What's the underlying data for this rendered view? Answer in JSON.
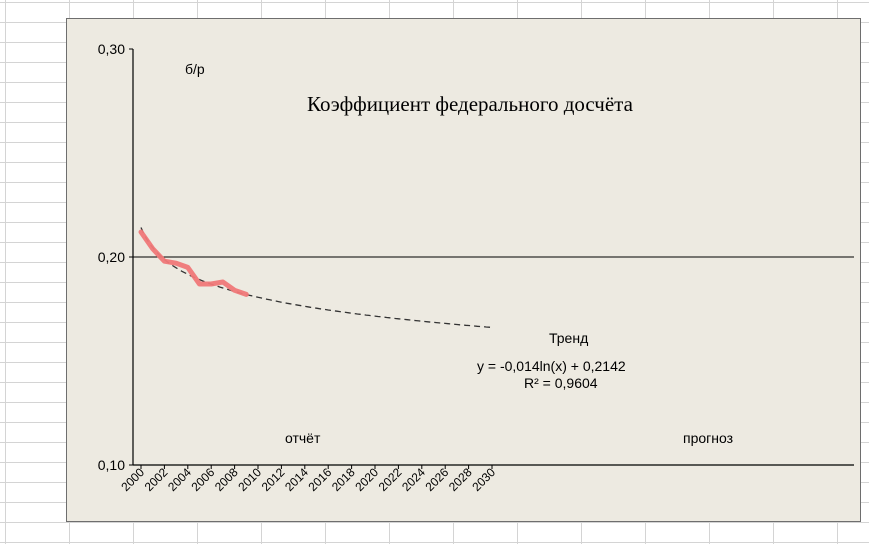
{
  "chart_data": {
    "type": "line",
    "title": "Коэффициент федерального досчёта",
    "ylabel": "б/р",
    "xlim": [
      2000,
      2030
    ],
    "ylim": [
      0.1,
      0.3
    ],
    "y_ticks": [
      {
        "value": 0.1,
        "label": "0,10"
      },
      {
        "value": 0.2,
        "label": "0,20"
      },
      {
        "value": 0.3,
        "label": "0,30"
      }
    ],
    "x_ticks": [
      "2000",
      "2002",
      "2004",
      "2006",
      "2008",
      "2010",
      "2012",
      "2014",
      "2016",
      "2018",
      "2020",
      "2022",
      "2024",
      "2026",
      "2028",
      "2030"
    ],
    "grid_y": [
      0.2
    ],
    "series": [
      {
        "name": "",
        "color": "#f07878",
        "style": "solid",
        "x": [
          2000,
          2001,
          2002,
          2003,
          2004,
          2005,
          2006,
          2007,
          2008,
          2009
        ],
        "y": [
          0.212,
          0.204,
          0.198,
          0.197,
          0.195,
          0.187,
          0.187,
          0.188,
          0.184,
          0.182
        ]
      },
      {
        "name": "Тренд",
        "color": "#333333",
        "style": "dashed",
        "equation": {
          "a": -0.014,
          "b": 0.2142,
          "x0": 1999
        },
        "x_range": [
          2000,
          2030
        ]
      }
    ],
    "annotations": {
      "trend_label": "Тренд",
      "equation": "y = -0,014ln(x) + 0,2142",
      "r2": "R² = 0,9604",
      "report": "отчёт",
      "forecast": "прогноз"
    }
  }
}
